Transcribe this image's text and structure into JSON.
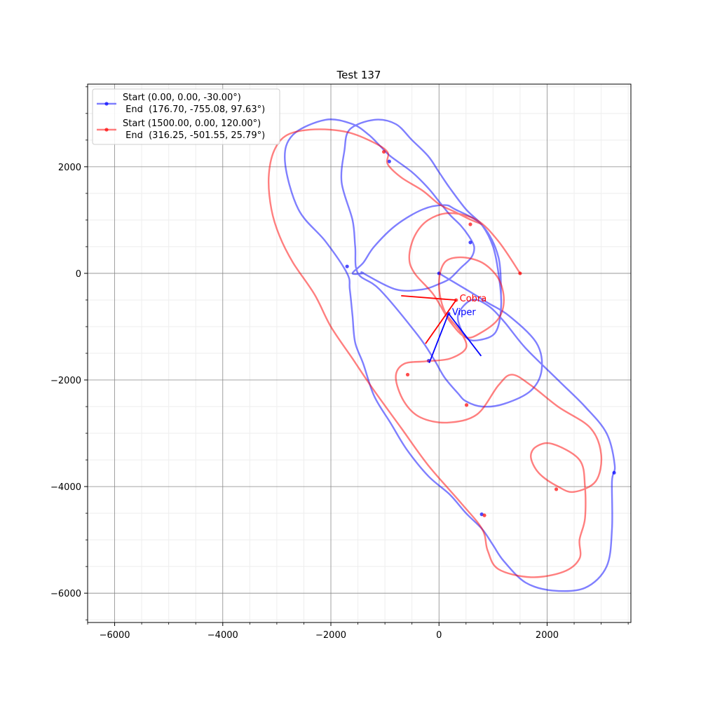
{
  "chart_data": {
    "type": "line",
    "title": "Test 137",
    "xlabel": "",
    "ylabel": "",
    "xlim": [
      -6500,
      3550
    ],
    "ylim": [
      -6550,
      3550
    ],
    "x_ticks": [
      -6000,
      -4000,
      -2000,
      0,
      2000
    ],
    "y_ticks": [
      -6000,
      -4000,
      -2000,
      0,
      2000
    ],
    "x_tick_labels": [
      "−6000",
      "−4000",
      "−2000",
      "0",
      "2000"
    ],
    "y_tick_labels": [
      "−6000",
      "−4000",
      "−2000",
      "0",
      "2000"
    ],
    "grid": true,
    "legend_placement": "top-left",
    "series": [
      {
        "name": "Start (0.00, 0.00, -30.00°)\n End  (176.70, -755.08, 97.63°)",
        "legend_lines": [
          "Start (0.00, 0.00, -30.00°)",
          " End  (176.70, -755.08, 97.63°)"
        ],
        "color": "#0000ff",
        "x": [
          0,
          500,
          900,
          1300,
          1800,
          1900,
          1700,
          1200,
          800,
          500,
          350,
          100,
          -100,
          -400,
          -1100,
          -1500,
          -1550,
          -1600,
          -1800,
          -1750,
          -1650,
          -1200,
          -800,
          -500,
          -200,
          0,
          200,
          500,
          800,
          1000,
          1100,
          1150,
          1050,
          750,
          500,
          350,
          600,
          900,
          1200,
          1600,
          2200,
          2700,
          3100,
          3250,
          3200,
          3200,
          3100,
          2700,
          2100,
          1600,
          1200,
          1000,
          800,
          500,
          200,
          -200,
          -600,
          -900,
          -1200,
          -1400,
          -1550,
          -1600,
          -1650,
          -1700,
          -2100,
          -2600,
          -2850,
          -2700,
          -2100,
          -1600,
          -1300,
          -1100,
          -900,
          -500,
          -200,
          0,
          200,
          400,
          550,
          650,
          600,
          400,
          200,
          0,
          -300,
          -800,
          -1400,
          -1400,
          -1600,
          -1400,
          -1200,
          -800,
          -300,
          100,
          300,
          800,
          1100,
          1150
        ],
        "y": [
          0,
          -300,
          -550,
          -800,
          -1300,
          -1800,
          -2200,
          -2450,
          -2500,
          -2400,
          -2250,
          -1950,
          -1600,
          -1150,
          -300,
          0,
          500,
          1000,
          1700,
          2300,
          2700,
          2880,
          2800,
          2500,
          2200,
          1900,
          1600,
          1200,
          900,
          500,
          0,
          -600,
          -1100,
          -1250,
          -1200,
          -800,
          -500,
          -600,
          -900,
          -1400,
          -2000,
          -2500,
          -3000,
          -3600,
          -3900,
          -4800,
          -5500,
          -5900,
          -5950,
          -5800,
          -5400,
          -5100,
          -4800,
          -4500,
          -4150,
          -3800,
          -3300,
          -2800,
          -2300,
          -1700,
          -1300,
          -800,
          -300,
          0,
          600,
          1200,
          2100,
          2600,
          2880,
          2800,
          2600,
          2400,
          2200,
          1900,
          1600,
          1350,
          1100,
          900,
          700,
          500,
          300,
          100,
          -100,
          -200,
          -300,
          -300,
          0,
          0,
          0,
          200,
          500,
          900,
          1200,
          1280,
          1200,
          900,
          300,
          -500
        ],
        "markers": [
          [
            0,
            0
          ],
          [
            580,
            580
          ],
          [
            -1700,
            130
          ],
          [
            -920,
            2100
          ],
          [
            3240,
            -3740
          ],
          [
            790,
            -4520
          ],
          [
            -190,
            -1640
          ],
          [
            176.7,
            -755.08
          ]
        ]
      },
      {
        "name": "Start (1500.00, 0.00, 120.00°)\n End  (316.25, -501.55, 25.79°)",
        "legend_lines": [
          "Start (1500.00, 0.00, 120.00°)",
          " End  (316.25, -501.55, 25.79°)"
        ],
        "color": "#ff0000",
        "x": [
          1500,
          1100,
          700,
          200,
          -200,
          -450,
          -550,
          -450,
          -100,
          200,
          500,
          800,
          1100,
          1200,
          1100,
          800,
          400,
          100,
          0,
          100,
          400,
          500,
          200,
          -250,
          -650,
          -800,
          -650,
          -350,
          150,
          700,
          1100,
          1350,
          1700,
          2200,
          2800,
          3000,
          2900,
          2500,
          2200,
          1850,
          1700,
          1800,
          2100,
          2600,
          2700,
          2700,
          2600,
          2600,
          2300,
          1700,
          1100,
          900,
          800,
          400,
          -200,
          -700,
          -1200,
          -1600,
          -2000,
          -2300,
          -2700,
          -2950,
          -3100,
          -3150,
          -3050,
          -2800,
          -2300,
          -1700,
          -1200,
          -950,
          -950,
          -700,
          -300,
          0,
          300,
          600,
          800
        ],
        "y": [
          0,
          600,
          1000,
          1130,
          1000,
          700,
          300,
          0,
          -400,
          -900,
          -1200,
          -1100,
          -850,
          -500,
          -100,
          200,
          300,
          200,
          -200,
          -700,
          -1100,
          -1400,
          -1600,
          -1650,
          -1700,
          -1950,
          -2400,
          -2700,
          -2800,
          -2650,
          -2100,
          -1900,
          -2100,
          -2500,
          -2900,
          -3400,
          -3900,
          -4100,
          -4000,
          -3750,
          -3450,
          -3250,
          -3200,
          -3500,
          -4000,
          -4600,
          -5000,
          -5350,
          -5600,
          -5700,
          -5550,
          -5200,
          -4800,
          -4300,
          -3600,
          -2900,
          -2200,
          -1600,
          -1000,
          -400,
          200,
          700,
          1200,
          1800,
          2300,
          2600,
          2700,
          2650,
          2450,
          2270,
          2050,
          1800,
          1550,
          1300,
          1150,
          1000,
          920
        ],
        "markers": [
          [
            1500,
            0
          ],
          [
            580,
            920
          ],
          [
            -1020,
            2280
          ],
          [
            -580,
            -1900
          ],
          [
            510,
            -2470
          ],
          [
            2170,
            -4050
          ],
          [
            840,
            -4540
          ],
          [
            316.25,
            -501.55
          ]
        ]
      }
    ],
    "annotations": [
      {
        "label": "Viper",
        "color": "#0000ff",
        "anchor": [
          176.7,
          -755.08
        ],
        "heading_deg": 97.63
      },
      {
        "label": "Cobra",
        "color": "#ff0000",
        "anchor": [
          316.25,
          -501.55
        ],
        "heading_deg": 25.79
      }
    ],
    "agent_markers": [
      {
        "color": "#0000ff",
        "lines": [
          [
            [
              176.7,
              -755.08
            ],
            [
              -180,
              -1680
            ]
          ],
          [
            [
              176.7,
              -755.08
            ],
            [
              780,
              -1550
            ]
          ]
        ]
      },
      {
        "color": "#ff0000",
        "lines": [
          [
            [
              316.25,
              -501.55
            ],
            [
              -700,
              -420
            ]
          ],
          [
            [
              316.25,
              -501.55
            ],
            [
              -250,
              -1320
            ]
          ]
        ]
      }
    ]
  }
}
